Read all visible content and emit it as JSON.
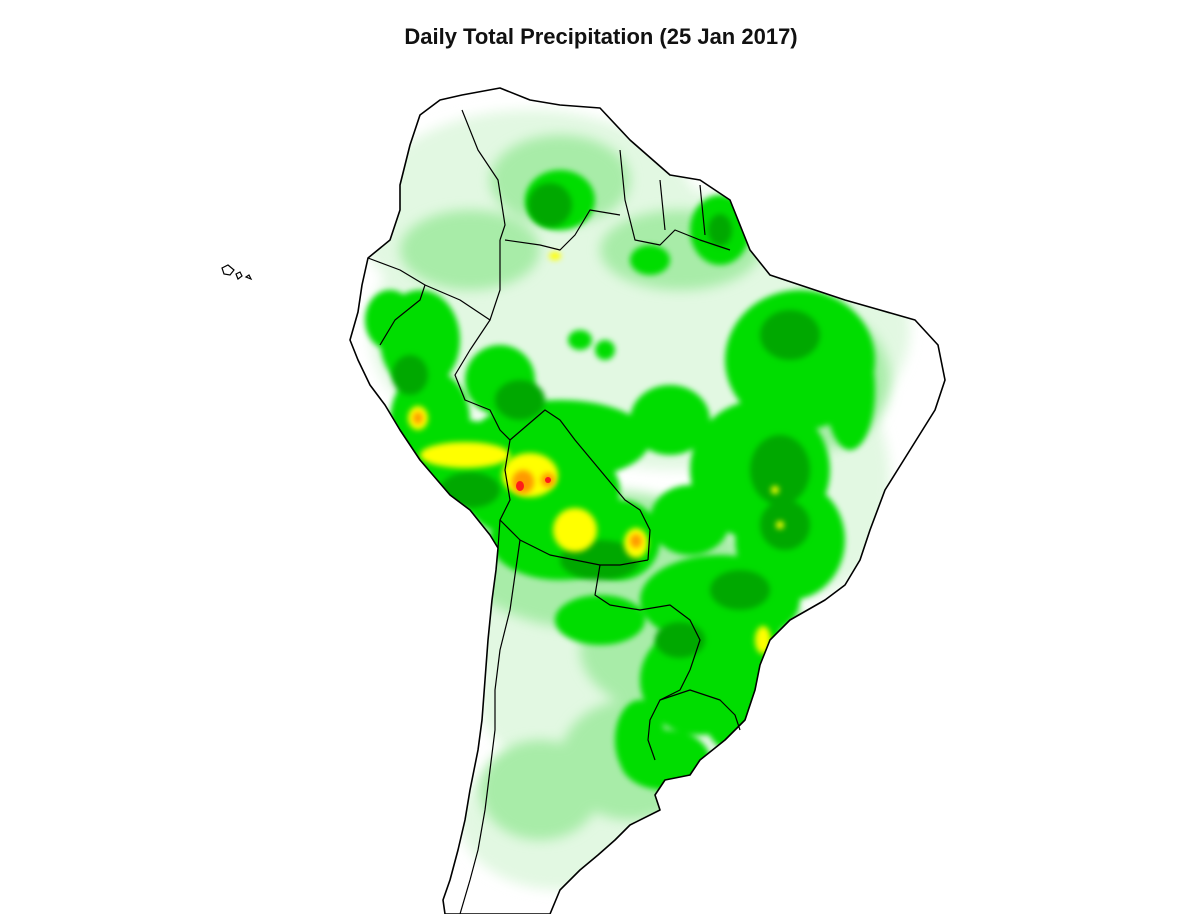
{
  "map": {
    "title": "Daily Total Precipitation (25 Jan 2017)",
    "region": "South America",
    "colors": {
      "land": "#ffffff",
      "border": "#000000",
      "very_light": "#e2f8e2",
      "light": "#a8eca8",
      "green": "#00dd00",
      "medium_green": "#00c000",
      "dark_green": "#007a00",
      "yellow": "#ffff00",
      "orange": "#ff9900",
      "red": "#ff1a1a"
    }
  }
}
